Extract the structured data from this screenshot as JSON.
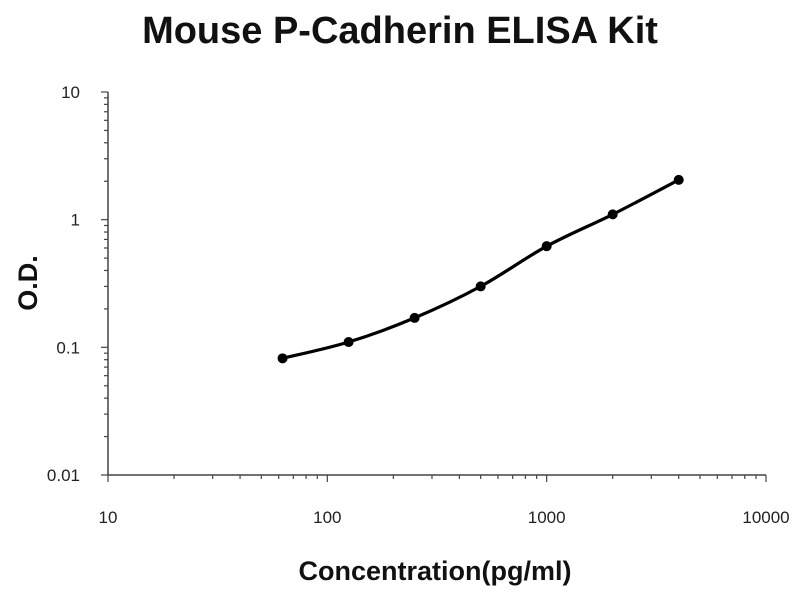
{
  "chart_data": {
    "type": "scatter",
    "title": "Mouse P-Cadherin ELISA Kit",
    "xlabel": "Concentration(pg/ml)",
    "ylabel": "O.D.",
    "x_scale": "log",
    "y_scale": "log",
    "xlim": [
      10,
      10000
    ],
    "ylim": [
      0.01,
      10
    ],
    "x_ticks": [
      "10",
      "100",
      "1000",
      "10000"
    ],
    "y_ticks": [
      "0.01",
      "0.1",
      "1",
      "10"
    ],
    "grid": false,
    "legend": "none",
    "series": [
      {
        "x": [
          62.5,
          125,
          250,
          500,
          1000,
          2000,
          4000
        ],
        "y": [
          0.082,
          0.11,
          0.17,
          0.3,
          0.62,
          1.1,
          2.05
        ]
      }
    ],
    "colors": {
      "line": "#000000",
      "marker": "#000000",
      "axis": "#444444"
    }
  }
}
